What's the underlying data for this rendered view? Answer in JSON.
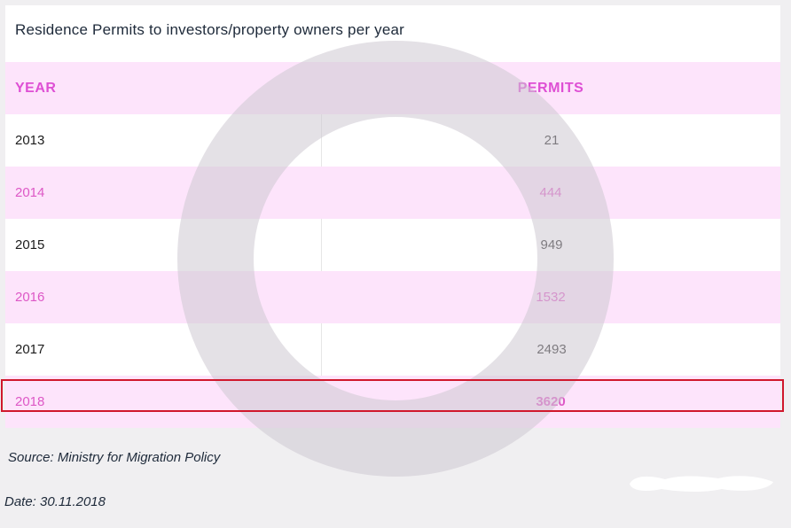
{
  "chart_data": {
    "type": "table",
    "title": "Residence Permits to investors/property owners per year",
    "columns": [
      "YEAR",
      "PERMITS"
    ],
    "rows": [
      {
        "year": "2013",
        "permits": "21"
      },
      {
        "year": "2014",
        "permits": "444"
      },
      {
        "year": "2015",
        "permits": "949"
      },
      {
        "year": "2016",
        "permits": "1532"
      },
      {
        "year": "2017",
        "permits": "2493"
      },
      {
        "year": "2018",
        "permits": "3620"
      }
    ],
    "highlighted_row": "2018",
    "colors": {
      "row_band": "#fde4fb",
      "pink_text": "#dd58c6",
      "highlight_border": "#d0182c",
      "watermark": "#cdc8d2"
    }
  },
  "footer": {
    "source": "Source: Ministry for Migration Policy",
    "date": "Date: 30.11.2018"
  }
}
